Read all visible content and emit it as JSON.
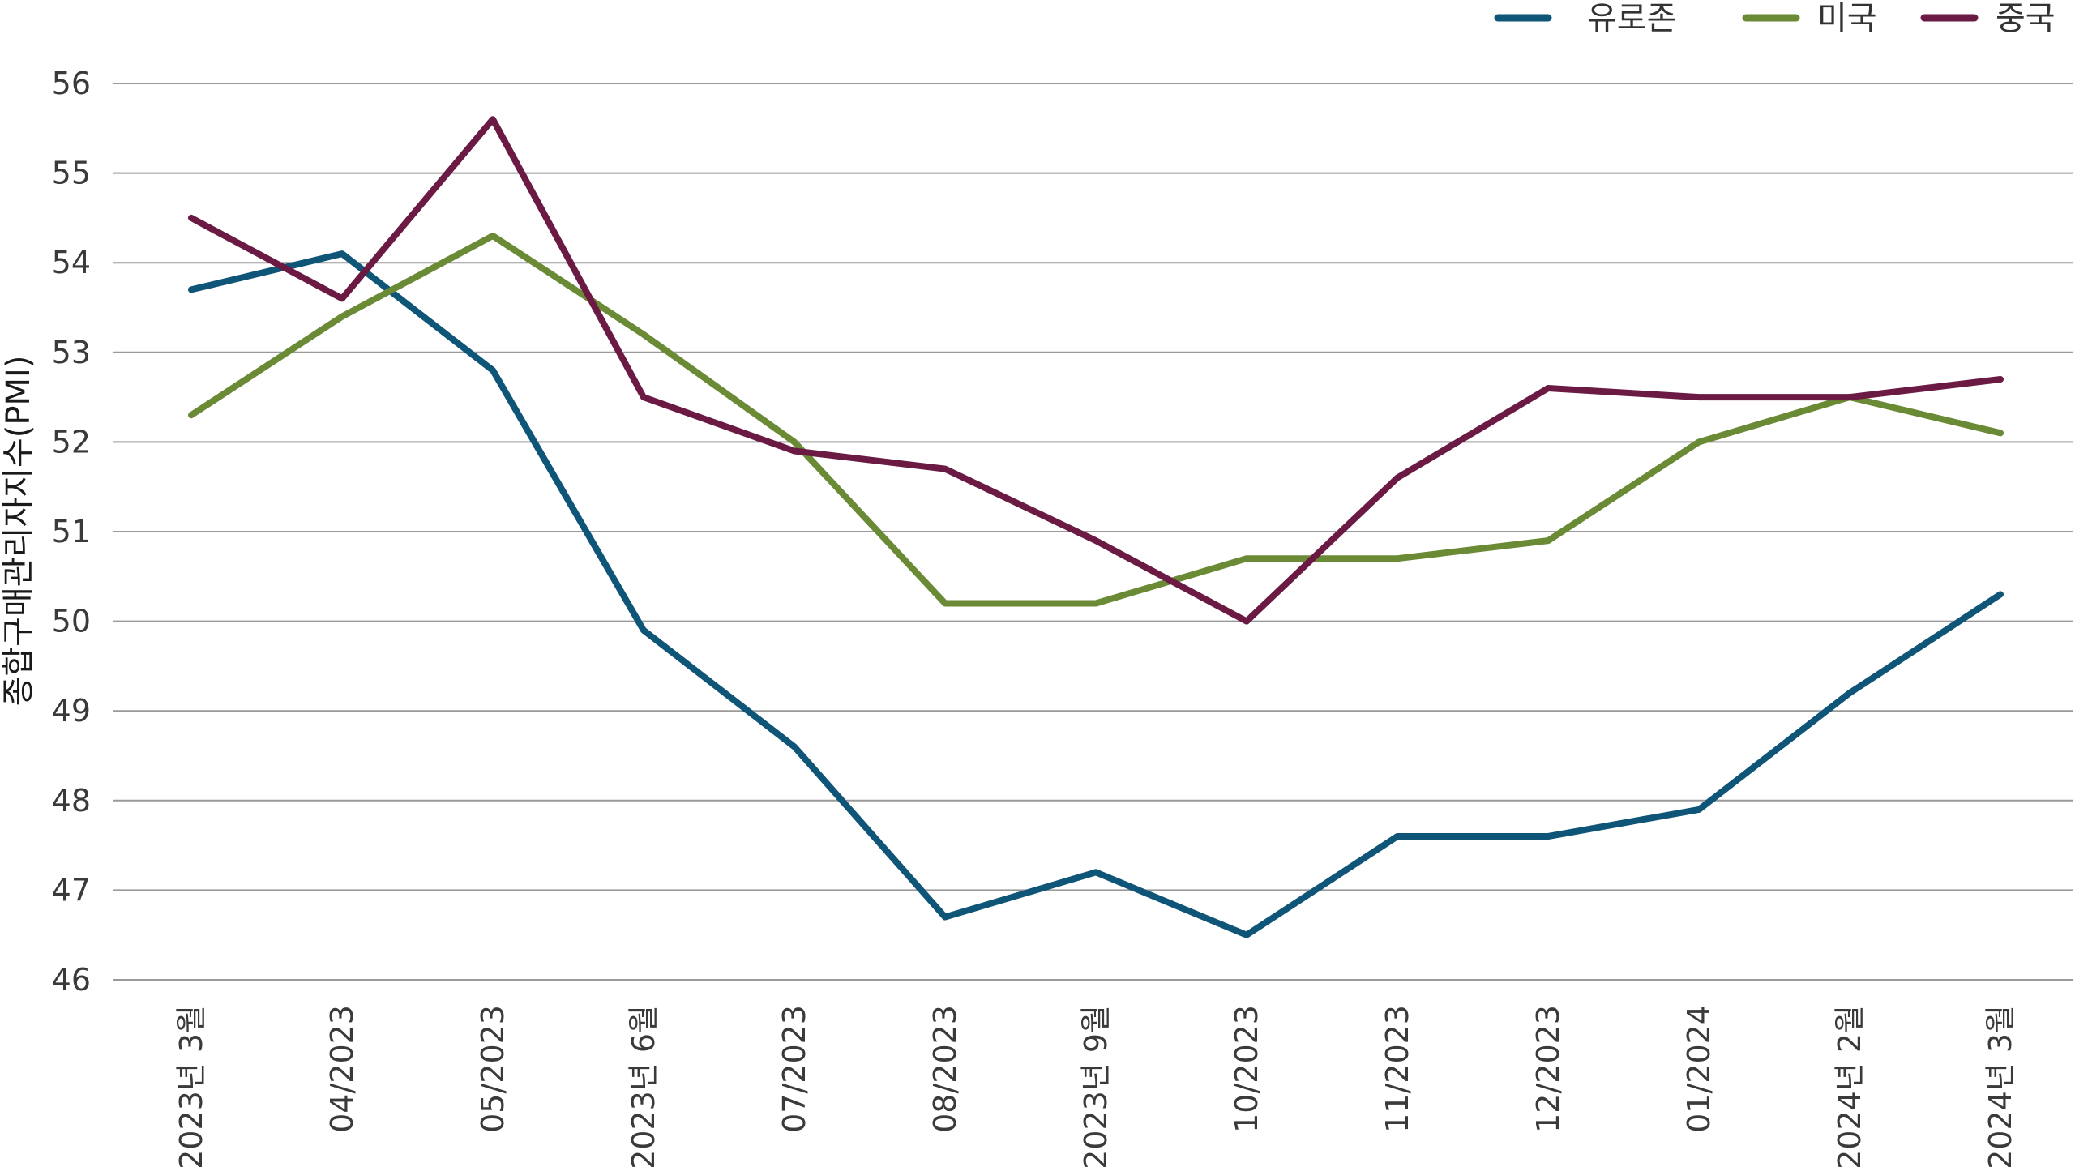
{
  "chart_data": {
    "type": "line",
    "title": "",
    "xlabel": "",
    "ylabel": "종합구매관리자지수(PMI)",
    "ylim": [
      46,
      56
    ],
    "yticks": [
      46,
      47,
      48,
      49,
      50,
      51,
      52,
      53,
      54,
      55,
      56
    ],
    "grid": true,
    "legend_position": "top-right",
    "categories": [
      "2023년 3월",
      "04/2023",
      "05/2023",
      "2023년 6월",
      "07/2023",
      "08/2023",
      "2023년 9월",
      "10/2023",
      "11/2023",
      "12/2023",
      "01/2024",
      "2024년 2월",
      "2024년 3월"
    ],
    "series": [
      {
        "name": "유로존",
        "color": "#0e5578",
        "values": [
          53.7,
          54.1,
          52.8,
          49.9,
          48.6,
          46.7,
          47.2,
          46.5,
          47.6,
          47.6,
          47.9,
          49.2,
          50.3
        ]
      },
      {
        "name": "미국",
        "color": "#6b8a35",
        "values": [
          52.3,
          53.4,
          54.3,
          53.2,
          52.0,
          50.2,
          50.2,
          50.7,
          50.7,
          50.9,
          52.0,
          52.5,
          52.1
        ]
      },
      {
        "name": "중국",
        "color": "#6b1a44",
        "values": [
          54.5,
          53.6,
          55.6,
          52.5,
          51.9,
          51.7,
          50.9,
          50.0,
          51.6,
          52.6,
          52.5,
          52.5,
          52.7
        ]
      }
    ]
  }
}
